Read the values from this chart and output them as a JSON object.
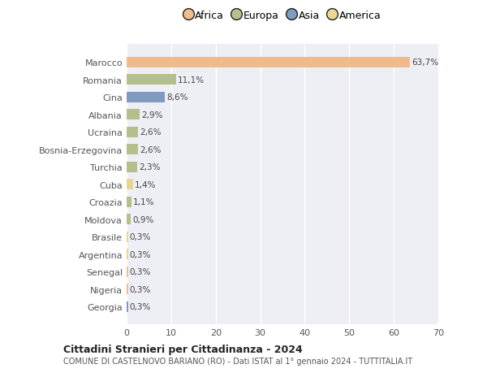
{
  "countries": [
    "Marocco",
    "Romania",
    "Cina",
    "Albania",
    "Ucraina",
    "Bosnia-Erzegovina",
    "Turchia",
    "Cuba",
    "Croazia",
    "Moldova",
    "Brasile",
    "Argentina",
    "Senegal",
    "Nigeria",
    "Georgia"
  ],
  "values": [
    63.7,
    11.1,
    8.6,
    2.9,
    2.6,
    2.6,
    2.3,
    1.4,
    1.1,
    0.9,
    0.3,
    0.3,
    0.3,
    0.3,
    0.3
  ],
  "labels": [
    "63,7%",
    "11,1%",
    "8,6%",
    "2,9%",
    "2,6%",
    "2,6%",
    "2,3%",
    "1,4%",
    "1,1%",
    "0,9%",
    "0,3%",
    "0,3%",
    "0,3%",
    "0,3%",
    "0,3%"
  ],
  "colors": [
    "#f0b27a",
    "#aab87a",
    "#6b8bb5",
    "#aab87a",
    "#aab87a",
    "#aab87a",
    "#aab87a",
    "#e8d080",
    "#aab87a",
    "#aab87a",
    "#e8d080",
    "#e8d080",
    "#f0b27a",
    "#f0b27a",
    "#6b8bb5"
  ],
  "continents": [
    "Africa",
    "Europa",
    "Asia",
    "Europa",
    "Europa",
    "Europa",
    "Europa",
    "America",
    "Europa",
    "Europa",
    "America",
    "America",
    "Africa",
    "Africa",
    "Asia"
  ],
  "legend_labels": [
    "Africa",
    "Europa",
    "Asia",
    "America"
  ],
  "legend_colors": [
    "#f0b27a",
    "#aab87a",
    "#6b8bb5",
    "#e8d080"
  ],
  "title": "Cittadini Stranieri per Cittadinanza - 2024",
  "subtitle": "COMUNE DI CASTELNOVO BARIANO (RO) - Dati ISTAT al 1° gennaio 2024 - TUTTITALIA.IT",
  "xlim": [
    0,
    70
  ],
  "xticks": [
    0,
    10,
    20,
    30,
    40,
    50,
    60,
    70
  ],
  "bg_color": "#ffffff",
  "plot_bg_color": "#eeeef5",
  "grid_color": "#ffffff",
  "bar_height": 0.6,
  "label_fontsize": 7.5,
  "ytick_fontsize": 8,
  "xtick_fontsize": 8
}
